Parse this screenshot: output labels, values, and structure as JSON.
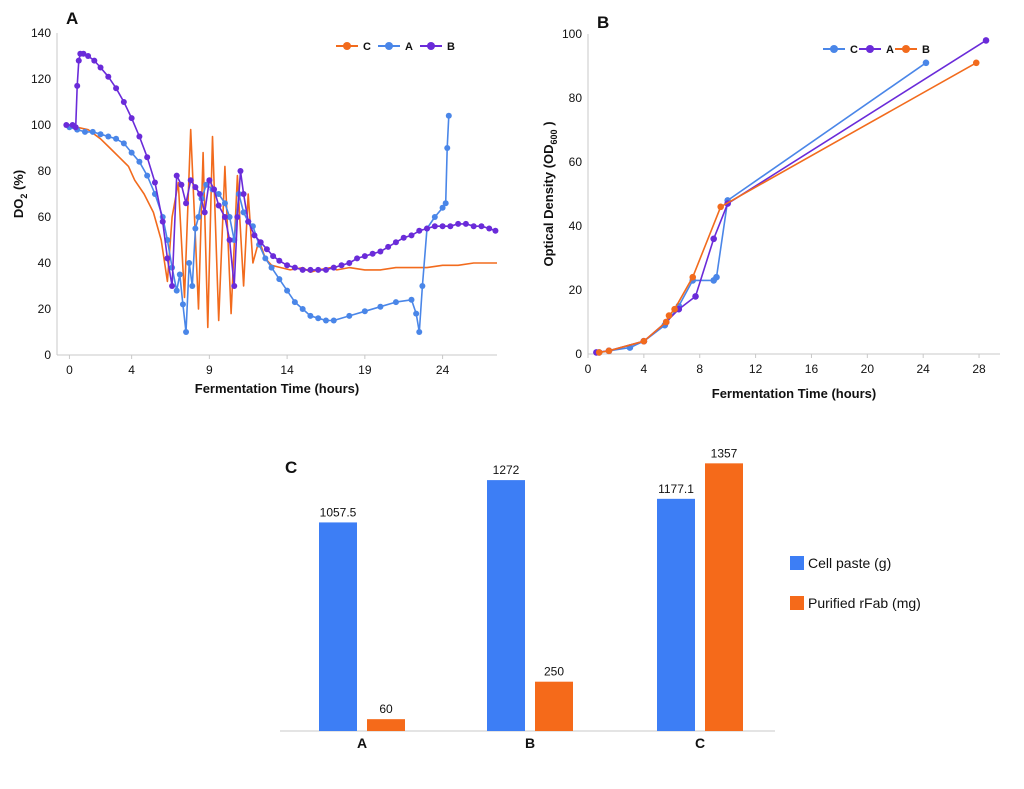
{
  "colors": {
    "blue": "#4a86e8",
    "orange": "#f26b1d",
    "purple": "#6a2bd9",
    "bar_blue": "#3d7ef5",
    "bar_orange": "#f56a1a"
  },
  "chart_data": [
    {
      "panel": "A",
      "type": "line",
      "xlabel": "Fermentation Time (hours)",
      "ylabel_main": "DO",
      "ylabel_sub": "2",
      "ylabel_suffix": " (%)",
      "xlim": [
        -0.8,
        27.5
      ],
      "ylim": [
        0,
        140
      ],
      "xticks": [
        0,
        4,
        9,
        14,
        19,
        24
      ],
      "yticks": [
        0,
        20,
        40,
        60,
        80,
        100,
        120,
        140
      ],
      "legend": [
        {
          "name": "C",
          "color": "#f26b1d"
        },
        {
          "name": "A",
          "color": "#4a86e8"
        },
        {
          "name": "B",
          "color": "#6a2bd9"
        }
      ],
      "series": [
        {
          "name": "C",
          "color": "#f26b1d",
          "markers": false,
          "x": [
            0,
            0.5,
            1.2,
            2.0,
            2.6,
            3.2,
            3.8,
            4.2,
            4.8,
            5.4,
            5.9,
            6.3,
            6.6,
            7.0,
            7.4,
            7.8,
            8.3,
            8.6,
            8.9,
            9.2,
            9.6,
            10.0,
            10.4,
            10.8,
            11.2,
            11.5,
            11.8,
            12.2,
            12.6,
            13.0,
            13.6,
            14.2,
            15.0,
            15.5,
            16.0,
            16.8,
            17.2,
            18.0,
            19.0,
            20.0,
            21.0,
            22.0,
            23.0,
            24.0,
            25.0,
            26.0,
            27.5
          ],
          "y": [
            100,
            99,
            98,
            94,
            90,
            86,
            82,
            76,
            70,
            62,
            50,
            32,
            60,
            75,
            25,
            98,
            20,
            88,
            12,
            95,
            15,
            82,
            18,
            78,
            30,
            70,
            40,
            50,
            42,
            39,
            38,
            37,
            38,
            36,
            37,
            38,
            37,
            38,
            37,
            37,
            38,
            38,
            38,
            39,
            39,
            40,
            40
          ]
        },
        {
          "name": "A",
          "color": "#4a86e8",
          "markers": true,
          "x": [
            0,
            0.5,
            1.0,
            1.5,
            2.0,
            2.5,
            3.0,
            3.5,
            4.0,
            4.5,
            5.0,
            5.5,
            6.0,
            6.3,
            6.6,
            6.9,
            7.1,
            7.3,
            7.5,
            7.7,
            7.9,
            8.1,
            8.3,
            8.5,
            8.8,
            9.2,
            9.6,
            10.0,
            10.3,
            10.6,
            10.9,
            11.2,
            11.5,
            11.8,
            12.2,
            12.6,
            13.0,
            13.5,
            14.0,
            14.5,
            15.0,
            15.5,
            16.0,
            16.5,
            17.0,
            18.0,
            19.0,
            20.0,
            21.0,
            22.0,
            22.3,
            22.5,
            22.7,
            23.0,
            23.5,
            24.0,
            24.2,
            24.3,
            24.4
          ],
          "y": [
            99,
            98,
            97,
            97,
            96,
            95,
            94,
            92,
            88,
            84,
            78,
            70,
            60,
            50,
            38,
            28,
            35,
            22,
            10,
            40,
            30,
            55,
            60,
            68,
            74,
            72,
            70,
            66,
            60,
            50,
            70,
            62,
            58,
            56,
            48,
            42,
            38,
            33,
            28,
            23,
            20,
            17,
            16,
            15,
            15,
            17,
            19,
            21,
            23,
            24,
            18,
            10,
            30,
            55,
            60,
            64,
            66,
            90,
            104
          ]
        },
        {
          "name": "B",
          "color": "#6a2bd9",
          "markers": true,
          "x": [
            -0.2,
            0.2,
            0.4,
            0.5,
            0.6,
            0.7,
            0.9,
            1.2,
            1.6,
            2.0,
            2.5,
            3.0,
            3.5,
            4.0,
            4.5,
            5.0,
            5.5,
            6.0,
            6.3,
            6.6,
            6.9,
            7.2,
            7.5,
            7.8,
            8.1,
            8.4,
            8.7,
            9.0,
            9.3,
            9.6,
            10.0,
            10.3,
            10.6,
            10.8,
            11.0,
            11.2,
            11.5,
            11.9,
            12.3,
            12.7,
            13.1,
            13.5,
            14.0,
            14.5,
            15.0,
            15.5,
            16.0,
            16.5,
            17.0,
            17.5,
            18.0,
            18.5,
            19.0,
            19.5,
            20.0,
            20.5,
            21.0,
            21.5,
            22.0,
            22.5,
            23.0,
            23.5,
            24.0,
            24.5,
            25.0,
            25.5,
            26.0,
            26.5,
            27.0,
            27.4
          ],
          "y": [
            100,
            100,
            99,
            117,
            128,
            131,
            131,
            130,
            128,
            125,
            121,
            116,
            110,
            103,
            95,
            86,
            75,
            58,
            42,
            30,
            78,
            74,
            66,
            76,
            73,
            70,
            62,
            76,
            72,
            65,
            60,
            50,
            30,
            60,
            80,
            70,
            58,
            52,
            49,
            46,
            43,
            41,
            39,
            38,
            37,
            37,
            37,
            37,
            38,
            39,
            40,
            42,
            43,
            44,
            45,
            47,
            49,
            51,
            52,
            54,
            55,
            56,
            56,
            56,
            57,
            57,
            56,
            56,
            55,
            54
          ]
        }
      ]
    },
    {
      "panel": "B",
      "type": "line",
      "xlabel": "Fermentation Time (hours)",
      "ylabel_main": "Optical Density (OD",
      "ylabel_sub": "600",
      "ylabel_suffix": " )",
      "xlim": [
        0,
        29.5
      ],
      "ylim": [
        0,
        100
      ],
      "xticks": [
        0,
        4,
        8,
        12,
        16,
        20,
        24,
        28
      ],
      "yticks": [
        0,
        20,
        40,
        60,
        80,
        100
      ],
      "legend": [
        {
          "name": "C",
          "color": "#4a86e8"
        },
        {
          "name": "A",
          "color": "#6a2bd9"
        },
        {
          "name": "B",
          "color": "#f26b1d"
        }
      ],
      "series": [
        {
          "name": "C",
          "color": "#4a86e8",
          "x": [
            0.8,
            1.5,
            3.0,
            4.0,
            5.5,
            6.5,
            7.5,
            9.0,
            9.2,
            10.0,
            24.2
          ],
          "y": [
            0.5,
            1,
            2,
            4,
            9,
            15,
            23,
            23,
            24,
            48,
            91
          ]
        },
        {
          "name": "A",
          "color": "#6a2bd9",
          "x": [
            0.6,
            1.5,
            4.0,
            5.6,
            6.5,
            7.7,
            9.0,
            10.0,
            28.5
          ],
          "y": [
            0.5,
            1,
            4,
            10,
            14,
            18,
            36,
            47,
            98
          ]
        },
        {
          "name": "B",
          "color": "#f26b1d",
          "x": [
            0.8,
            1.5,
            4.0,
            5.6,
            5.8,
            6.2,
            7.5,
            9.5,
            27.8
          ],
          "y": [
            0.5,
            1,
            4,
            10,
            12,
            14,
            24,
            46,
            91
          ]
        }
      ]
    },
    {
      "panel": "C",
      "type": "bar",
      "categories": [
        "A",
        "B",
        "C"
      ],
      "ylim": [
        0,
        1450
      ],
      "series": [
        {
          "name": "Cell paste (g)",
          "color": "#3d7ef5",
          "values": [
            1057.5,
            1272,
            1177.1
          ],
          "labels": [
            "1057.5",
            "1272",
            "1177.1"
          ]
        },
        {
          "name": "Purified rFab (mg)",
          "color": "#f56a1a",
          "values": [
            60,
            250,
            1357
          ],
          "labels": [
            "60",
            "250",
            "1357"
          ]
        }
      ]
    }
  ]
}
